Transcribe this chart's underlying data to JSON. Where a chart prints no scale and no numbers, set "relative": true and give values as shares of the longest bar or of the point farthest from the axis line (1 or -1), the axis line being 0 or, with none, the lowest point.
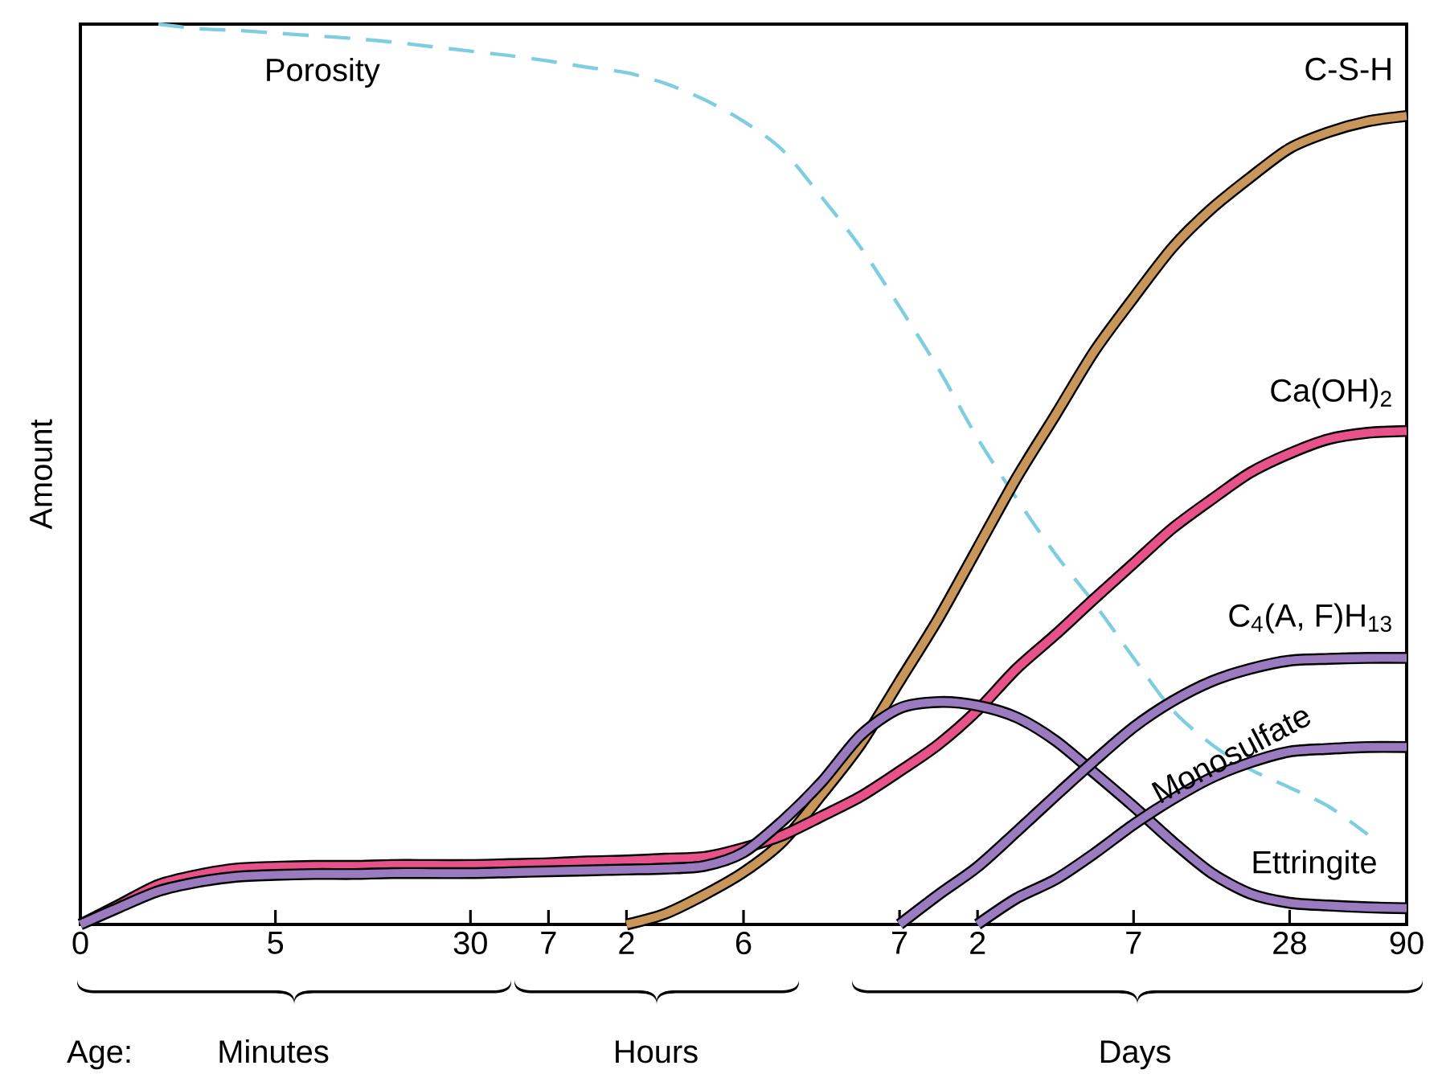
{
  "chart_data": {
    "type": "line",
    "relative": true,
    "ylabel": "Amount",
    "tick_labels": "x",
    "marker": "none",
    "grid": false,
    "categories": [
      "0",
      null,
      null,
      null,
      null,
      "5",
      null,
      null,
      null,
      null,
      "30",
      null,
      "7",
      null,
      "2",
      null,
      null,
      "6",
      null,
      null,
      null,
      "7",
      null,
      "2",
      null,
      null,
      null,
      "7",
      null,
      null,
      null,
      "28",
      null,
      null,
      "90"
    ],
    "series": [
      {
        "name": "Porosity",
        "color": "#7fcde0",
        "line_style": "dashed",
        "values": [
          null,
          null,
          1,
          0.995,
          0.993,
          0.99,
          0.987,
          0.984,
          0.98,
          0.975,
          0.97,
          0.965,
          0.959,
          0.952,
          0.946,
          0.934,
          0.916,
          0.892,
          0.86,
          0.808,
          0.752,
          0.686,
          0.617,
          0.54,
          0.473,
          0.411,
          0.356,
          0.296,
          0.238,
          0.2,
          0.172,
          0.152,
          0.131,
          0.1,
          null
        ]
      },
      {
        "name": "C-S-H",
        "color": "#c8965a",
        "line_style": "solid",
        "values": [
          null,
          null,
          null,
          null,
          null,
          null,
          null,
          null,
          null,
          null,
          null,
          null,
          null,
          null,
          0,
          0.012,
          0.033,
          0.058,
          0.092,
          0.144,
          0.2,
          0.27,
          0.34,
          0.418,
          0.496,
          0.566,
          0.637,
          0.696,
          0.752,
          0.795,
          0.83,
          0.862,
          0.88,
          0.892,
          0.898
        ]
      },
      {
        "name": "Ca(OH)$_{2}$",
        "color": "#e8528a",
        "line_style": "solid",
        "values": [
          0,
          0.022,
          0.044,
          0.055,
          0.062,
          0.064,
          0.065,
          0.065,
          0.066,
          0.066,
          0.066,
          0.067,
          0.068,
          0.07,
          0.071,
          0.073,
          0.075,
          0.085,
          0.099,
          0.12,
          0.142,
          0.17,
          0.2,
          0.238,
          0.284,
          0.322,
          0.362,
          0.401,
          0.44,
          0.472,
          0.502,
          0.523,
          0.539,
          0.546,
          0.548
        ]
      },
      {
        "name": "Ettringite",
        "color": "#9b7bbf",
        "line_style": "solid",
        "values": [
          0,
          0.019,
          0.037,
          0.047,
          0.053,
          0.055,
          0.056,
          0.056,
          0.057,
          0.057,
          0.057,
          0.058,
          0.059,
          0.06,
          0.061,
          0.062,
          0.065,
          0.08,
          0.115,
          0.158,
          0.21,
          0.24,
          0.247,
          0.243,
          0.23,
          0.204,
          0.168,
          0.131,
          0.092,
          0.057,
          0.034,
          0.024,
          0.021,
          0.019,
          0.018
        ]
      },
      {
        "name": "C$_{4}$(A, F)H$_{13}$",
        "color": "#9b7bbf",
        "line_style": "solid",
        "values": [
          null,
          null,
          null,
          null,
          null,
          null,
          null,
          null,
          null,
          null,
          null,
          null,
          null,
          null,
          null,
          null,
          null,
          null,
          null,
          null,
          null,
          0,
          0.033,
          0.064,
          0.103,
          0.143,
          0.182,
          0.219,
          0.248,
          0.27,
          0.284,
          0.293,
          0.295,
          0.296,
          0.296
        ]
      },
      {
        "name": "Monosulfate",
        "color": "#9b7bbf",
        "line_style": "solid",
        "values": [
          null,
          null,
          null,
          null,
          null,
          null,
          null,
          null,
          null,
          null,
          null,
          null,
          null,
          null,
          null,
          null,
          null,
          null,
          null,
          null,
          null,
          null,
          null,
          0,
          0.029,
          0.05,
          0.079,
          0.111,
          0.139,
          0.163,
          0.18,
          0.192,
          0.195,
          0.197,
          0.197
        ]
      }
    ],
    "annotations": [
      "Age:",
      "Minutes",
      "Hours",
      "Days"
    ]
  }
}
